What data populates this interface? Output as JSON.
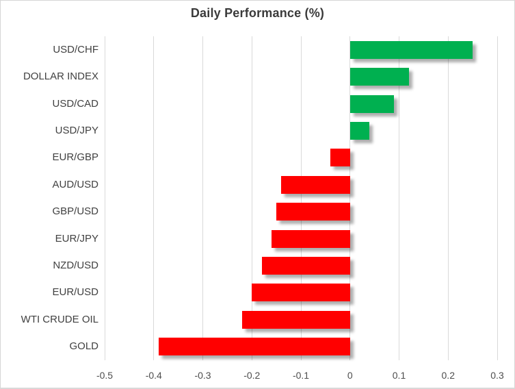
{
  "chart_data": {
    "type": "bar",
    "orientation": "horizontal",
    "title": "Daily Performance (%)",
    "categories": [
      "USD/CHF",
      "DOLLAR INDEX",
      "USD/CAD",
      "USD/JPY",
      "EUR/GBP",
      "AUD/USD",
      "GBP/USD",
      "EUR/JPY",
      "NZD/USD",
      "EUR/USD",
      "WTI CRUDE OIL",
      "GOLD"
    ],
    "values": [
      0.25,
      0.12,
      0.09,
      0.04,
      -0.04,
      -0.14,
      -0.15,
      -0.16,
      -0.18,
      -0.2,
      -0.22,
      -0.39
    ],
    "xlabel": "",
    "ylabel": "",
    "xlim": [
      -0.5,
      0.3
    ],
    "x_ticks": [
      -0.5,
      -0.4,
      -0.3,
      -0.2,
      -0.1,
      0,
      0.1,
      0.2,
      0.3
    ],
    "x_tick_labels": [
      "-0.5",
      "-0.4",
      "-0.3",
      "-0.2",
      "-0.1",
      "0",
      "0.1",
      "0.2",
      "0.3"
    ],
    "grid": "vertical-on",
    "legend": "none",
    "colors": {
      "positive": "#00B050",
      "negative": "#FF0000",
      "gridline": "#D9D9D9",
      "title_text": "#3A3A3A",
      "category_text": "#404040",
      "tick_text": "#4D4D4D",
      "background": "#FFFFFF"
    }
  }
}
